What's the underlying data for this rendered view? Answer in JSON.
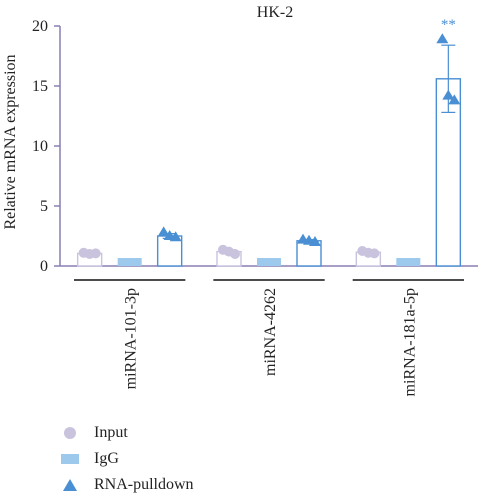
{
  "chart_data": {
    "type": "bar",
    "title": "HK-2",
    "ylabel": "Relative mRNA expression",
    "xlabel": "",
    "ylim": [
      0,
      20
    ],
    "yticks": [
      0,
      5,
      10,
      15,
      20
    ],
    "categories": [
      "miRNA-101-3p",
      "miRNA-4262",
      "miRNA-181a-5p"
    ],
    "series": [
      {
        "name": "Input",
        "marker": "circle",
        "fill": "#ffffff",
        "color": "#c9c3de",
        "values": [
          1.05,
          1.2,
          1.15
        ],
        "error": [
          0.1,
          0.15,
          0.1
        ],
        "points": [
          [
            1.1,
            1.0,
            1.05
          ],
          [
            1.35,
            1.2,
            1.0
          ],
          [
            1.25,
            1.1,
            1.05
          ]
        ]
      },
      {
        "name": "IgG",
        "marker": "square",
        "fill": "#9cc9ec",
        "color": "#9cc9ec",
        "values": [
          0.0,
          0.0,
          0.0
        ],
        "error": [
          0,
          0,
          0
        ],
        "points": [
          [
            0.0
          ],
          [
            0.0
          ],
          [
            0.0
          ]
        ]
      },
      {
        "name": "RNA-pulldown",
        "marker": "triangle",
        "fill": "#ffffff",
        "color": "#4a8fd3",
        "values": [
          2.5,
          2.1,
          15.6
        ],
        "error": [
          0.2,
          0.1,
          2.8
        ],
        "points": [
          [
            2.8,
            2.5,
            2.4
          ],
          [
            2.2,
            2.1,
            2.0
          ],
          [
            18.9,
            14.2,
            13.8
          ]
        ]
      }
    ],
    "annotations": [
      {
        "category": "miRNA-181a-5p",
        "series": "RNA-pulldown",
        "text": "**"
      }
    ],
    "legend_position": "bottom-left"
  },
  "legend": {
    "items": [
      {
        "label": "Input",
        "color": "#c9c3de",
        "icon": "circle-icon"
      },
      {
        "label": "IgG",
        "color": "#9cc9ec",
        "icon": "square-icon"
      },
      {
        "label": "RNA-pulldown",
        "color": "#4a8fd3",
        "icon": "triangle-icon"
      }
    ]
  }
}
